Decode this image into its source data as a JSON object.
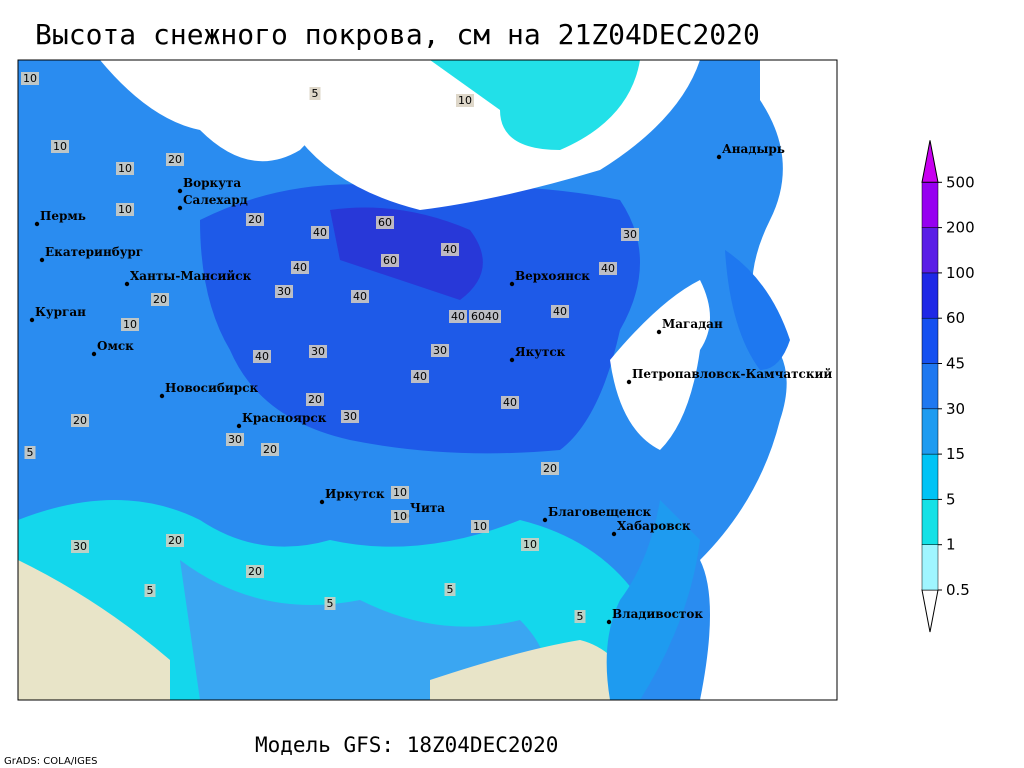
{
  "title": "Высота снежного покрова, см на 21Z04DEC2020",
  "model_label": "Модель GFS: 18Z04DEC2020",
  "credit": "GrADS: COLA/IGES",
  "colorbar": {
    "levels": [
      0.5,
      1,
      5,
      15,
      30,
      45,
      60,
      100,
      200,
      500
    ],
    "colors": [
      "#ffffff",
      "#a0f5ff",
      "#14e1e6",
      "#00c3f5",
      "#1e9bf0",
      "#1e78f0",
      "#1450f0",
      "#1e28e6",
      "#5a1ee6",
      "#9600f0",
      "#c800f0"
    ]
  },
  "cities": [
    "Воркута",
    "Салехард",
    "Пермь",
    "Екатеринбург",
    "Ханты-Мансийск",
    "Курган",
    "Омск",
    "Новосибирск",
    "Красноярск",
    "Иркутск",
    "Чита",
    "Благовещенск",
    "Хабаровск",
    "Владивосток",
    "Якутск",
    "Верхоянск",
    "Магадан",
    "Петропавловск-Камчатский",
    "Анадырь"
  ],
  "contour_labels": [
    10,
    10,
    10,
    5,
    10,
    20,
    10,
    20,
    40,
    60,
    60,
    40,
    40,
    30,
    20,
    10,
    30,
    40,
    40,
    40,
    6040,
    30,
    40,
    40,
    30,
    40,
    20,
    30,
    20,
    20,
    20,
    10,
    5,
    10,
    20,
    5,
    5,
    10,
    5,
    20,
    30,
    10,
    40,
    30,
    5
  ]
}
